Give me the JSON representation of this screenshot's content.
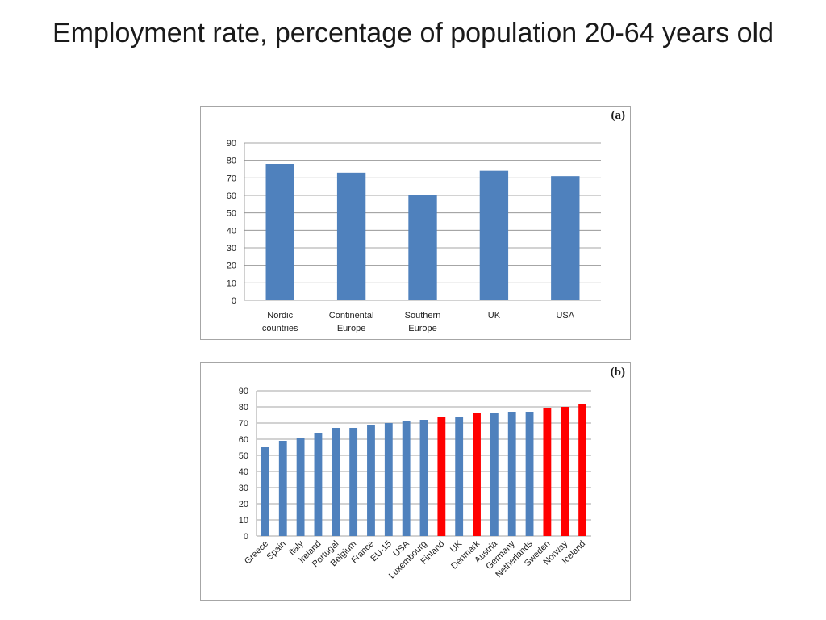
{
  "title": "Employment rate, percentage of population 20-64 years old",
  "chart_data": [
    {
      "type": "bar",
      "panel_label": "(a)",
      "categories": [
        [
          "Nordic",
          "countries"
        ],
        [
          "Continental",
          "Europe"
        ],
        [
          "Southern",
          "Europe"
        ],
        [
          "UK"
        ],
        [
          "USA"
        ]
      ],
      "values": [
        78,
        73,
        60,
        74,
        71
      ],
      "ylim": [
        0,
        90
      ],
      "yticks": [
        0,
        10,
        20,
        30,
        40,
        50,
        60,
        70,
        80,
        90
      ],
      "grid": true,
      "bar_color": "#4f81bd"
    },
    {
      "type": "bar",
      "panel_label": "(b)",
      "categories": [
        "Greece",
        "Spain",
        "Italy",
        "Ireland",
        "Portugal",
        "Belgium",
        "France",
        "EU-15",
        "USA",
        "Luxembourg",
        "Finland",
        "UK",
        "Denmark",
        "Austria",
        "Germany",
        "Netherlands",
        "Sweden",
        "Norway",
        "Iceland"
      ],
      "values": [
        55,
        59,
        61,
        64,
        67,
        67,
        69,
        70,
        71,
        72,
        74,
        74,
        76,
        76,
        77,
        77,
        79,
        80,
        82
      ],
      "highlight": [
        false,
        false,
        false,
        false,
        false,
        false,
        false,
        false,
        false,
        false,
        true,
        false,
        true,
        false,
        false,
        false,
        true,
        true,
        true
      ],
      "ylim": [
        0,
        90
      ],
      "yticks": [
        0,
        10,
        20,
        30,
        40,
        50,
        60,
        70,
        80,
        90
      ],
      "grid": true,
      "bar_color": "#4f81bd",
      "highlight_color": "#ff0000"
    }
  ]
}
